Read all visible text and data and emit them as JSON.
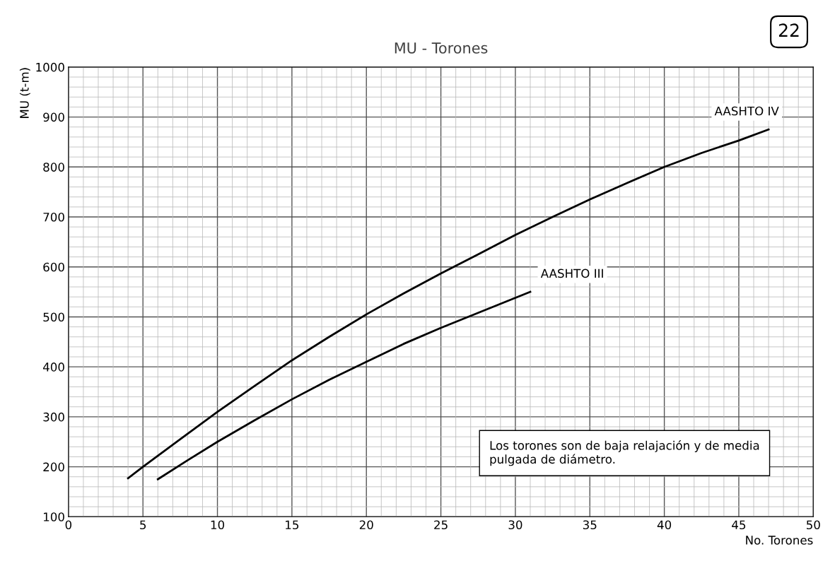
{
  "chart_data": {
    "type": "line",
    "title": "MU - Torones",
    "xlabel": "No. Torones",
    "ylabel": "MU (t-m)",
    "series": [
      {
        "name": "AASHTO IV",
        "color": "#000000",
        "x": [
          4,
          5,
          7.5,
          10,
          12.5,
          15,
          17.5,
          20,
          22.5,
          25,
          27.5,
          30,
          32.5,
          35,
          37.5,
          40,
          42.5,
          45,
          47
        ],
        "values": [
          177,
          200,
          255,
          310,
          362,
          413,
          460,
          505,
          547,
          587,
          625,
          664,
          700,
          735,
          768,
          800,
          828,
          853,
          875
        ]
      },
      {
        "name": "AASHTO III",
        "color": "#000000",
        "x": [
          6,
          8,
          10,
          12.5,
          15,
          17.5,
          20,
          22.5,
          25,
          27.5,
          30,
          31
        ],
        "values": [
          175,
          213,
          250,
          293,
          335,
          374,
          410,
          446,
          478,
          508,
          538,
          550
        ]
      }
    ],
    "xlim": [
      0,
      50
    ],
    "xticks": [
      0,
      5,
      10,
      15,
      20,
      25,
      30,
      35,
      40,
      45,
      50
    ],
    "ylim": [
      100,
      1000
    ],
    "yticks": [
      100,
      200,
      300,
      400,
      500,
      600,
      700,
      800,
      900,
      1000
    ],
    "grid": true,
    "marker": "none",
    "line_style": "solid",
    "annotations": [
      "22",
      "Los torones son de baja relajación y de media\npulgada de diámetro."
    ]
  }
}
